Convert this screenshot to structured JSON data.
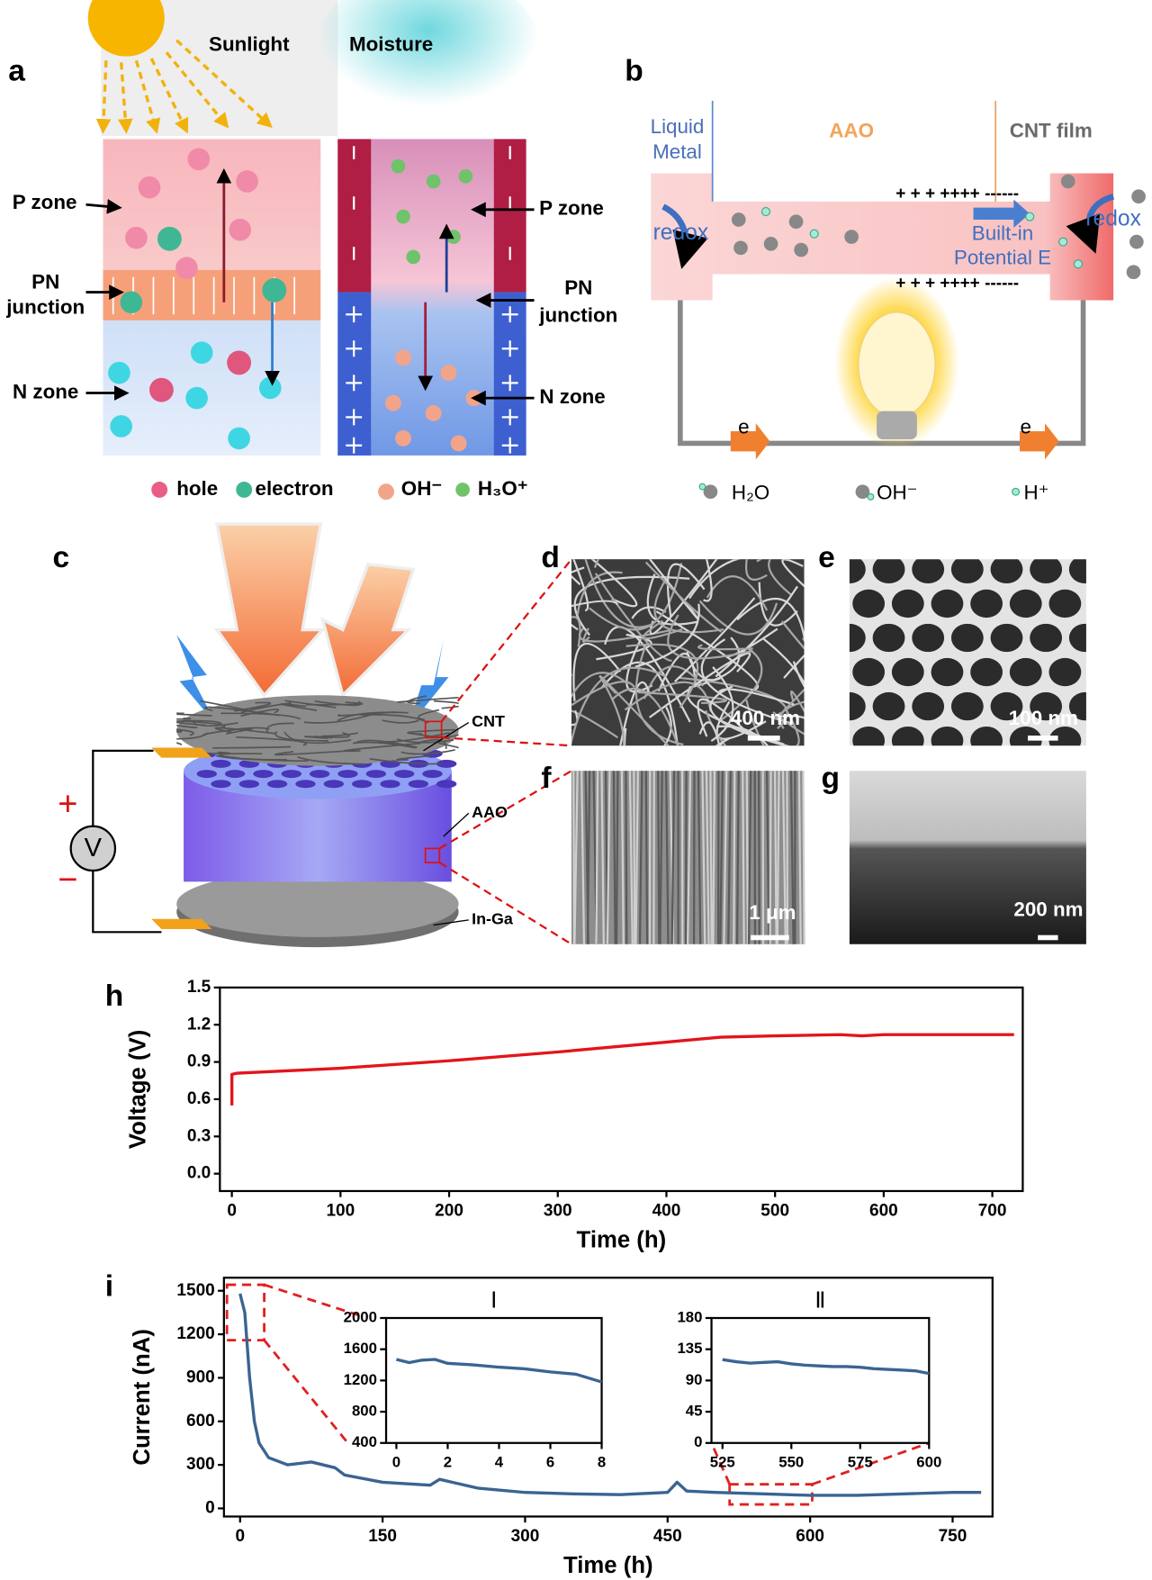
{
  "panel_a": {
    "label": "a",
    "sunlight": "Sunlight",
    "moisture": "Moisture",
    "left": {
      "p_zone": "P zone",
      "pn_junction": [
        "PN",
        "junction"
      ],
      "n_zone": "N zone"
    },
    "right": {
      "p_zone": "P zone",
      "pn_junction": [
        "PN",
        "junction"
      ],
      "n_zone": "N zone"
    },
    "legend": [
      "hole",
      "electron",
      "OH⁻",
      "H₃O⁺"
    ]
  },
  "panel_b": {
    "label": "b",
    "liquid_metal": [
      "Liquid",
      "Metal"
    ],
    "aao": "AAO",
    "cnt_film": "CNT film",
    "redox_left": "redox",
    "redox_right": "redox",
    "built_in": [
      "Built-in",
      "Potential E"
    ],
    "charges_top": "+ + + ++++ ------",
    "charges_bottom": "+ + + ++++ ------",
    "e_left": "e",
    "e_right": "e",
    "legend": [
      "H₂O",
      "OH⁻",
      "H⁺"
    ]
  },
  "panel_c": {
    "label": "c",
    "cnt": "CNT",
    "aao": "AAO",
    "in_ga": "In-Ga",
    "voltmeter": "V",
    "plus": "+",
    "minus": "−"
  },
  "sem": {
    "d": {
      "label": "d",
      "scale": "400 nm"
    },
    "e": {
      "label": "e",
      "scale": "100 nm"
    },
    "f": {
      "label": "f",
      "scale": "1 μm"
    },
    "g": {
      "label": "g",
      "scale": "200 nm"
    }
  },
  "chart_data": [
    {
      "type": "line",
      "panel_label": "h",
      "xlabel": "Time (h)",
      "ylabel": "Voltage (V)",
      "color": "#e3141b",
      "x": [
        0,
        0,
        5,
        100,
        200,
        300,
        400,
        450,
        500,
        560,
        580,
        600,
        650,
        700,
        720
      ],
      "values": [
        0.55,
        0.8,
        0.81,
        0.85,
        0.91,
        0.98,
        1.06,
        1.1,
        1.11,
        1.12,
        1.11,
        1.12,
        1.12,
        1.12,
        1.12
      ],
      "xlim": [
        -11,
        728
      ],
      "ylim": [
        -0.14,
        1.5
      ],
      "xticks": [
        0,
        100,
        200,
        300,
        400,
        500,
        600,
        700
      ],
      "yticks": [
        {
          "value": 0,
          "label": "0.0"
        },
        0.3,
        0.6,
        0.9,
        1.2,
        1.5
      ]
    },
    {
      "type": "line",
      "panel_label": "i",
      "xlabel": "Time (h)",
      "ylabel": "Current (nA)",
      "color": "#3a6491",
      "x": [
        0,
        5,
        10,
        15,
        20,
        30,
        50,
        75,
        100,
        110,
        150,
        200,
        210,
        250,
        300,
        350,
        400,
        450,
        460,
        470,
        500,
        550,
        600,
        650,
        700,
        750,
        780
      ],
      "values": [
        1480,
        1350,
        900,
        600,
        450,
        350,
        300,
        320,
        280,
        230,
        180,
        160,
        200,
        140,
        110,
        100,
        95,
        110,
        180,
        120,
        110,
        100,
        90,
        90,
        100,
        110,
        110
      ],
      "xlim": [
        -17,
        792
      ],
      "ylim": [
        -56,
        1590
      ],
      "xticks": [
        0,
        150,
        300,
        450,
        600,
        750
      ],
      "yticks": [
        0,
        300,
        600,
        900,
        1200,
        1500
      ]
    },
    {
      "type": "line",
      "title": "Ⅰ",
      "color": "#3a6491",
      "x": [
        0,
        0.5,
        1,
        1.5,
        2,
        3,
        4,
        5,
        6,
        7,
        8
      ],
      "values": [
        1470,
        1430,
        1460,
        1470,
        1420,
        1400,
        1370,
        1350,
        1310,
        1280,
        1180
      ],
      "xlim": [
        -0.4,
        8
      ],
      "ylim": [
        400,
        2000
      ],
      "xticks": [
        0,
        2,
        4,
        6,
        8
      ],
      "yticks": [
        400,
        800,
        1200,
        1600,
        2000
      ]
    },
    {
      "type": "line",
      "title": "Ⅱ",
      "color": "#3a6491",
      "x": [
        525,
        530,
        535,
        540,
        545,
        550,
        555,
        560,
        565,
        570,
        575,
        580,
        585,
        590,
        595,
        600
      ],
      "values": [
        120,
        117,
        115,
        116,
        117,
        114,
        112,
        111,
        110,
        110,
        109,
        107,
        106,
        105,
        104,
        100
      ],
      "xlim": [
        521,
        600
      ],
      "ylim": [
        0,
        180
      ],
      "xticks": [
        525,
        550,
        575,
        600
      ],
      "yticks": [
        0,
        45,
        90,
        135,
        180
      ]
    }
  ]
}
